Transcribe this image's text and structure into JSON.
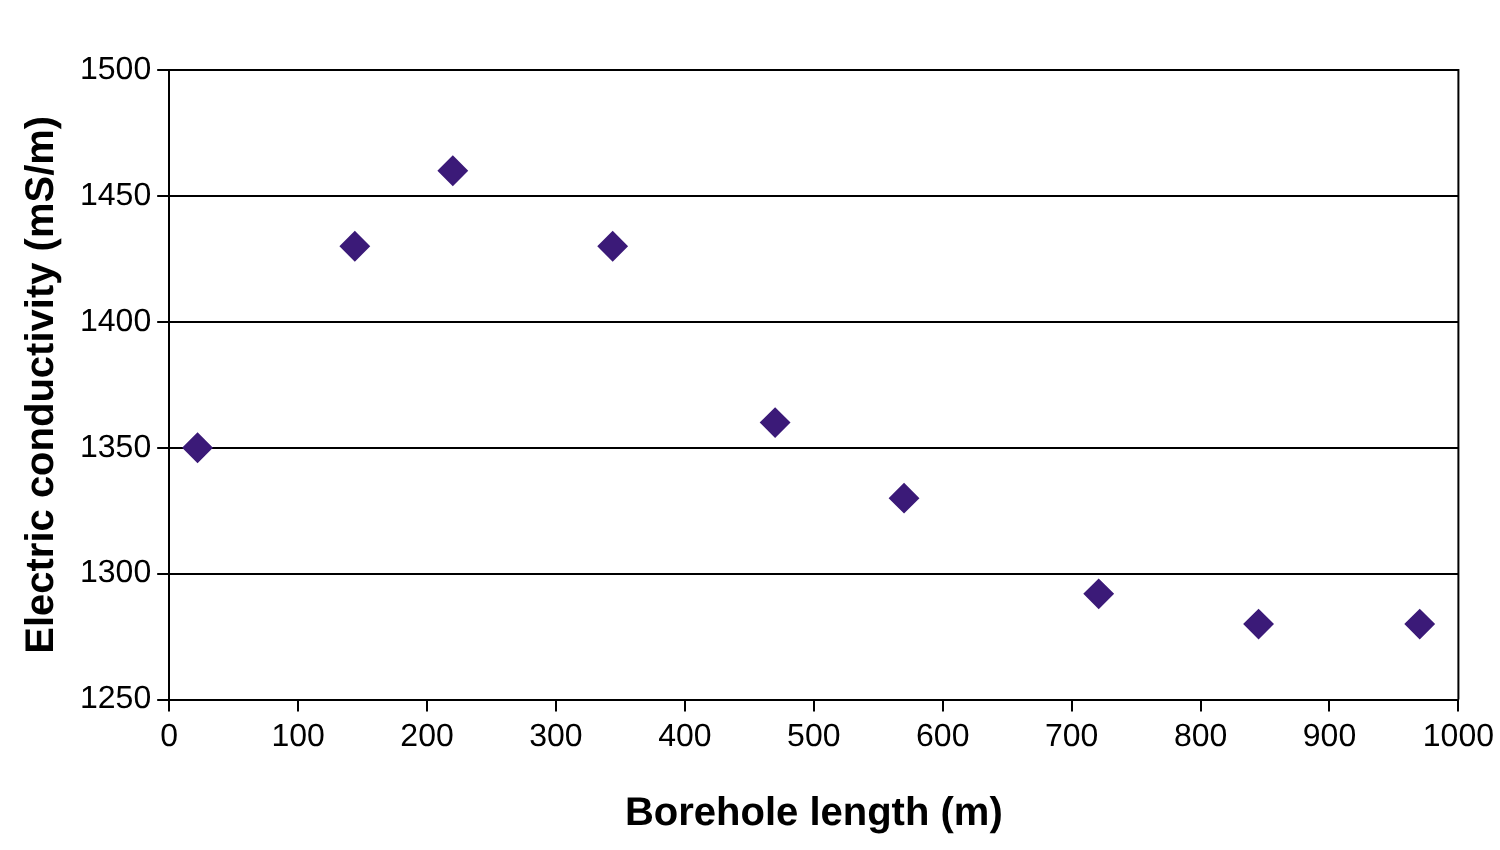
{
  "chart_data": {
    "type": "scatter",
    "xlabel": "Borehole length (m)",
    "ylabel": "Electric conductivity (mS/m)",
    "x": [
      22,
      144,
      220,
      344,
      470,
      570,
      721,
      845,
      970
    ],
    "series": [
      {
        "color": "#3b1a78",
        "values": [
          1350,
          1430,
          1460,
          1430,
          1360,
          1330,
          1292,
          1280,
          1280
        ]
      }
    ],
    "xlim": [
      0,
      1000
    ],
    "xticks": [
      0,
      100,
      200,
      300,
      400,
      500,
      600,
      700,
      800,
      900,
      1000
    ],
    "ylim": [
      1250,
      1500
    ],
    "yticks": [
      1250,
      1300,
      1350,
      1400,
      1450,
      1500
    ],
    "grid": "y",
    "legend": false,
    "marker": "diamond"
  }
}
